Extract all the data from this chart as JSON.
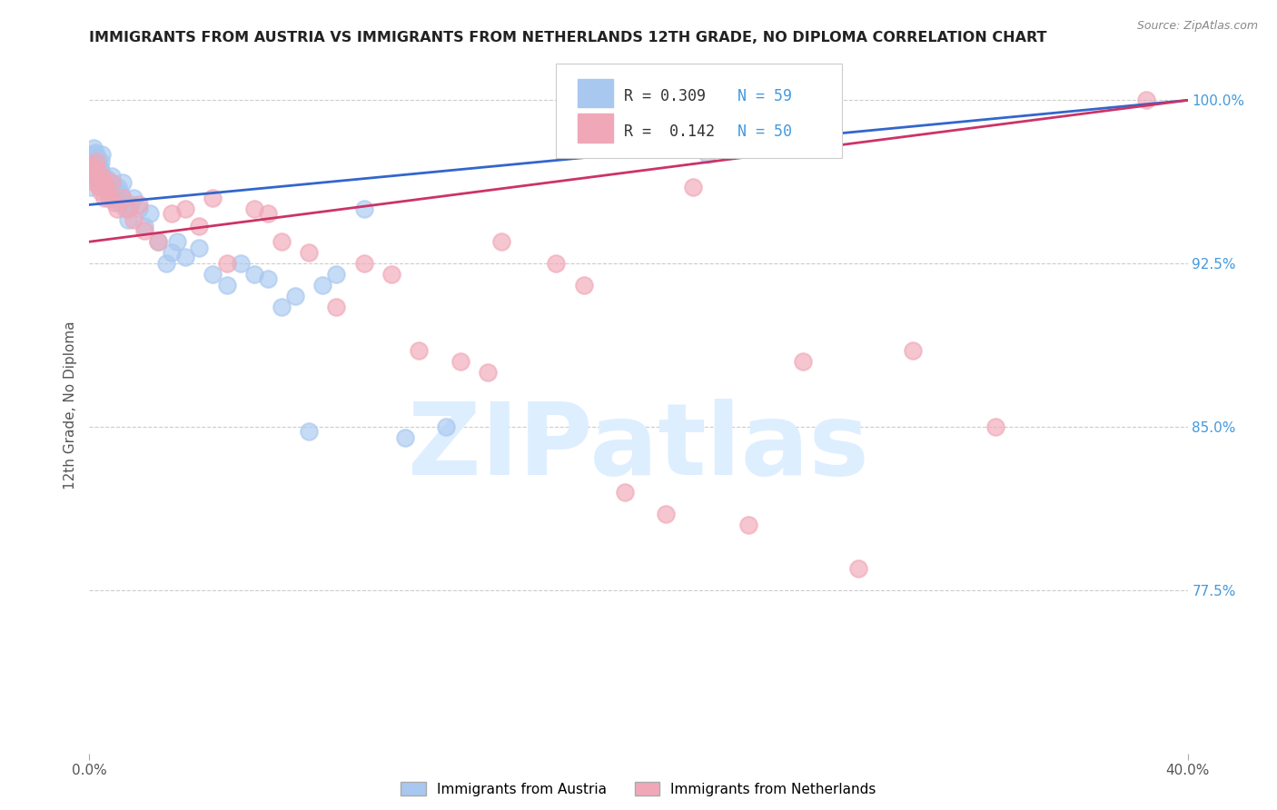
{
  "title": "IMMIGRANTS FROM AUSTRIA VS IMMIGRANTS FROM NETHERLANDS 12TH GRADE, NO DIPLOMA CORRELATION CHART",
  "source": "Source: ZipAtlas.com",
  "ylabel": "12th Grade, No Diploma",
  "right_yticks": [
    77.5,
    85.0,
    92.5,
    100.0
  ],
  "right_ytick_labels": [
    "77.5%",
    "85.0%",
    "92.5%",
    "100.0%"
  ],
  "xlim": [
    0.0,
    40.0
  ],
  "ylim": [
    70.0,
    102.0
  ],
  "austria_R": 0.309,
  "austria_N": 59,
  "netherlands_R": 0.142,
  "netherlands_N": 50,
  "austria_color": "#a8c8f0",
  "netherlands_color": "#f0a8b8",
  "austria_line_color": "#3366cc",
  "netherlands_line_color": "#cc3366",
  "watermark": "ZIPatlas",
  "watermark_color": "#ddeeff",
  "background_color": "#ffffff",
  "title_fontsize": 11.5,
  "austria_x": [
    0.05,
    0.08,
    0.1,
    0.12,
    0.15,
    0.18,
    0.2,
    0.22,
    0.25,
    0.28,
    0.3,
    0.32,
    0.35,
    0.38,
    0.4,
    0.42,
    0.45,
    0.5,
    0.55,
    0.6,
    0.65,
    0.7,
    0.75,
    0.8,
    0.85,
    0.9,
    0.95,
    1.0,
    1.05,
    1.1,
    1.15,
    1.2,
    1.3,
    1.4,
    1.5,
    1.6,
    1.8,
    2.0,
    2.2,
    2.5,
    2.8,
    3.0,
    3.2,
    3.5,
    4.0,
    4.5,
    5.0,
    5.5,
    6.0,
    6.5,
    7.0,
    7.5,
    8.0,
    8.5,
    9.0,
    10.0,
    11.5,
    13.0,
    22.5
  ],
  "austria_y": [
    96.0,
    97.2,
    97.5,
    97.0,
    97.8,
    96.8,
    97.3,
    97.6,
    96.5,
    97.1,
    97.4,
    96.2,
    97.0,
    96.9,
    97.2,
    96.8,
    97.5,
    96.5,
    96.3,
    96.0,
    96.4,
    95.8,
    96.2,
    96.5,
    95.5,
    96.0,
    95.8,
    95.5,
    96.0,
    95.3,
    95.7,
    96.2,
    95.0,
    94.5,
    95.2,
    95.5,
    95.0,
    94.2,
    94.8,
    93.5,
    92.5,
    93.0,
    93.5,
    92.8,
    93.2,
    92.0,
    91.5,
    92.5,
    92.0,
    91.8,
    90.5,
    91.0,
    84.8,
    91.5,
    92.0,
    95.0,
    84.5,
    85.0,
    97.5
  ],
  "netherlands_x": [
    0.05,
    0.1,
    0.15,
    0.2,
    0.25,
    0.3,
    0.35,
    0.4,
    0.45,
    0.5,
    0.55,
    0.6,
    0.65,
    0.7,
    0.8,
    0.9,
    1.0,
    1.2,
    1.4,
    1.6,
    1.8,
    2.0,
    2.5,
    3.0,
    3.5,
    4.0,
    4.5,
    5.0,
    6.0,
    6.5,
    7.0,
    8.0,
    9.0,
    10.0,
    11.0,
    12.0,
    13.5,
    14.5,
    15.0,
    17.0,
    18.0,
    19.5,
    21.0,
    22.0,
    24.0,
    26.0,
    28.0,
    30.0,
    33.0,
    38.5
  ],
  "netherlands_y": [
    96.8,
    97.0,
    96.5,
    96.2,
    97.2,
    96.8,
    96.0,
    95.8,
    96.5,
    96.3,
    95.5,
    96.0,
    95.8,
    95.5,
    96.2,
    95.3,
    95.0,
    95.5,
    95.0,
    94.5,
    95.2,
    94.0,
    93.5,
    94.8,
    95.0,
    94.2,
    95.5,
    92.5,
    95.0,
    94.8,
    93.5,
    93.0,
    90.5,
    92.5,
    92.0,
    88.5,
    88.0,
    87.5,
    93.5,
    92.5,
    91.5,
    82.0,
    81.0,
    96.0,
    80.5,
    88.0,
    78.5,
    88.5,
    85.0,
    100.0
  ],
  "austria_line_x": [
    0.0,
    40.0
  ],
  "netherlands_line_x": [
    0.0,
    40.0
  ]
}
